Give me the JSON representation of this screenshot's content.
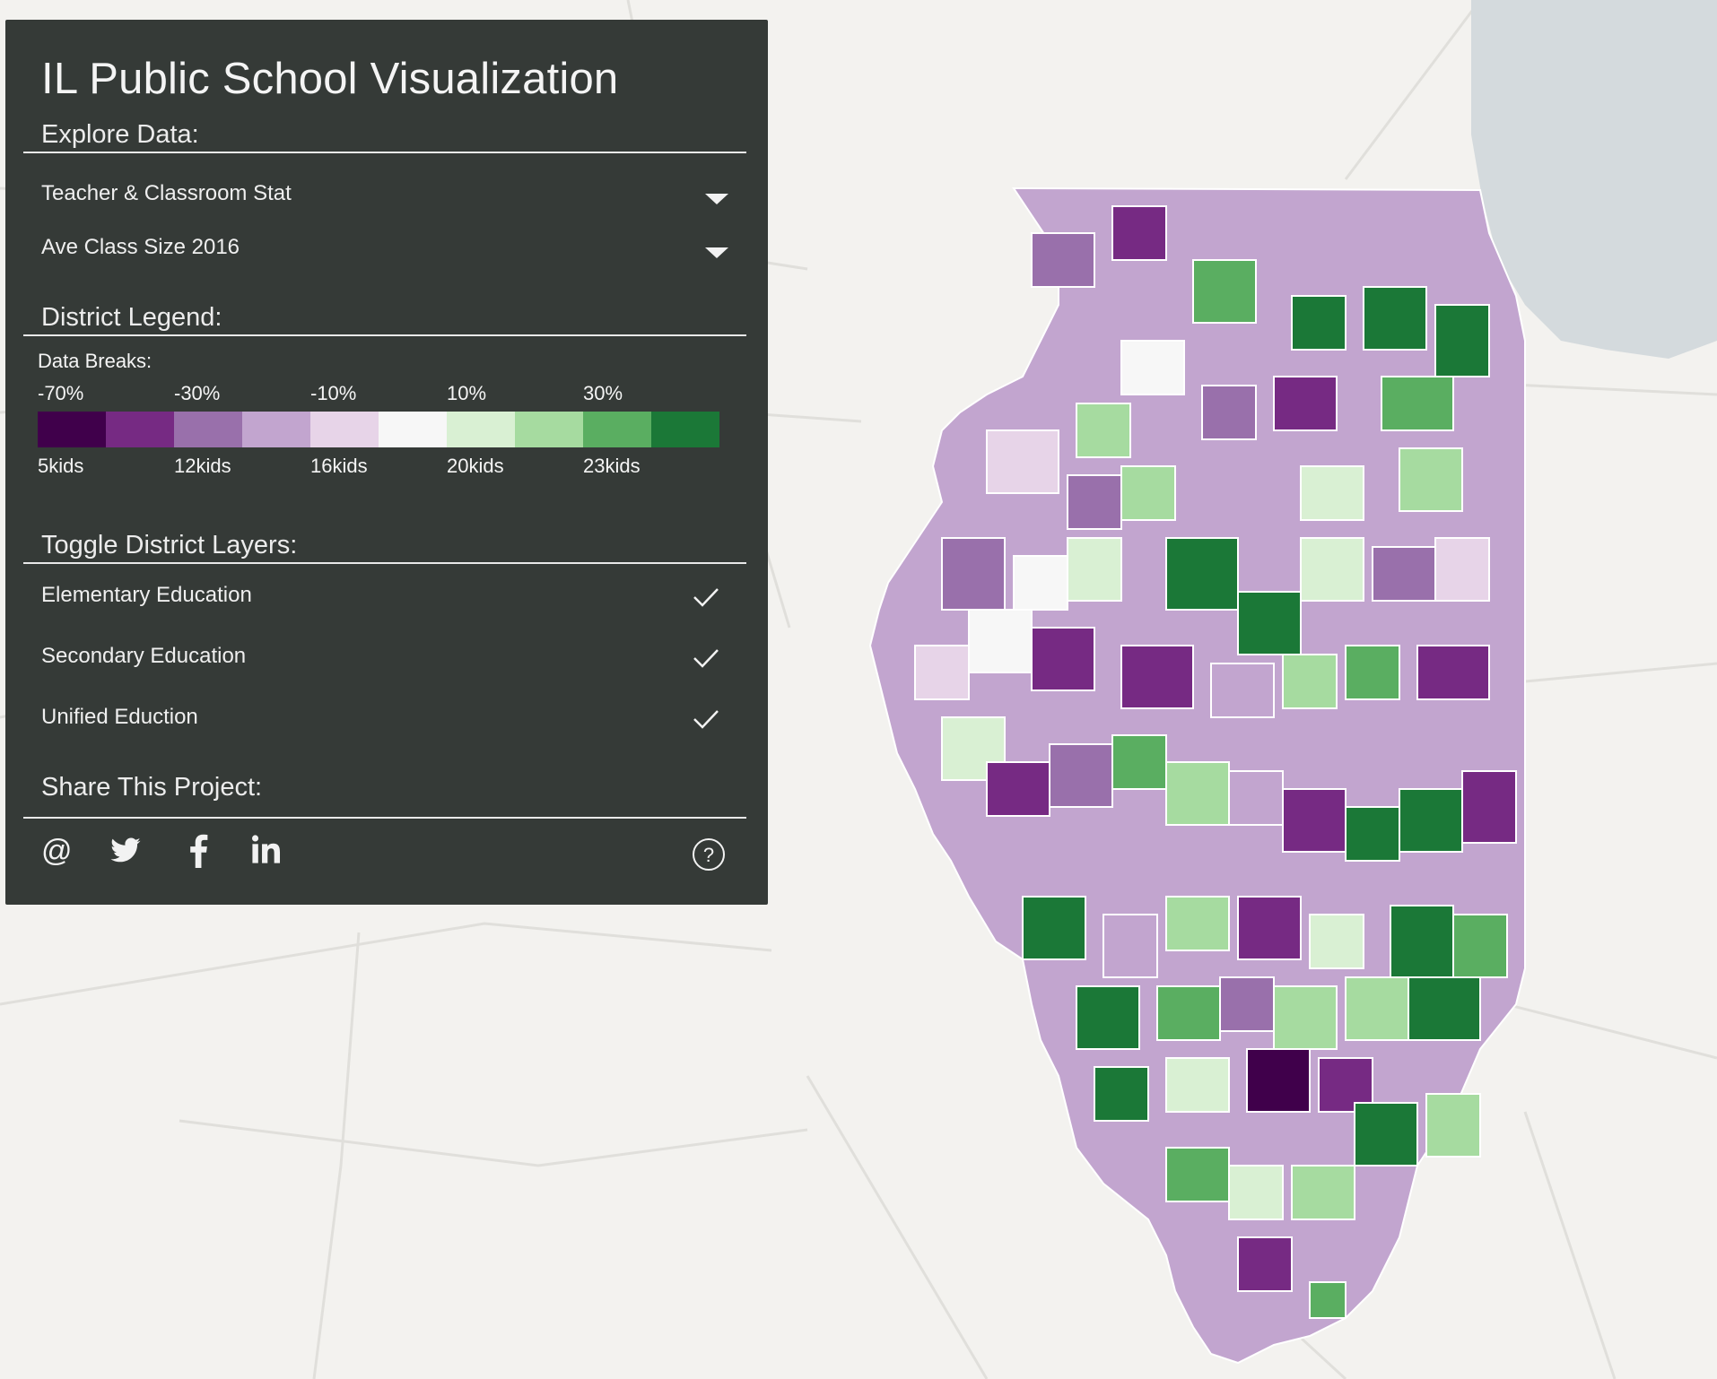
{
  "panel": {
    "title": "IL Public School Visualization",
    "explore_heading": "Explore Data:",
    "category_value": "Teacher & Classroom Stat",
    "metric_value": "Ave Class Size 2016",
    "legend_heading": "District Legend:",
    "data_breaks_label": "Data Breaks:",
    "percent_breaks": [
      "-70%",
      "-30%",
      "-10%",
      "10%",
      "30%"
    ],
    "value_breaks": [
      "5kids",
      "12kids",
      "16kids",
      "20kids",
      "23kids"
    ],
    "legend_colors": [
      "#40004b",
      "#762a83",
      "#9970ab",
      "#c2a5cf",
      "#e7d4e8",
      "#f7f7f7",
      "#d9f0d3",
      "#a6dba0",
      "#5aae61",
      "#1b7837"
    ],
    "layers_heading": "Toggle District Layers:",
    "layers": [
      {
        "label": "Elementary Education",
        "checked": true
      },
      {
        "label": "Secondary Education",
        "checked": true
      },
      {
        "label": "Unified Eduction",
        "checked": true
      }
    ],
    "share_heading": "Share This Project:",
    "share_icons": [
      "at-icon",
      "twitter-icon",
      "facebook-icon",
      "linkedin-icon"
    ],
    "help_icon": "help-icon"
  },
  "map": {
    "land_color": "#f3f2ef",
    "lake_color": "#d4dadd",
    "road_color": "#e2e1dd"
  }
}
